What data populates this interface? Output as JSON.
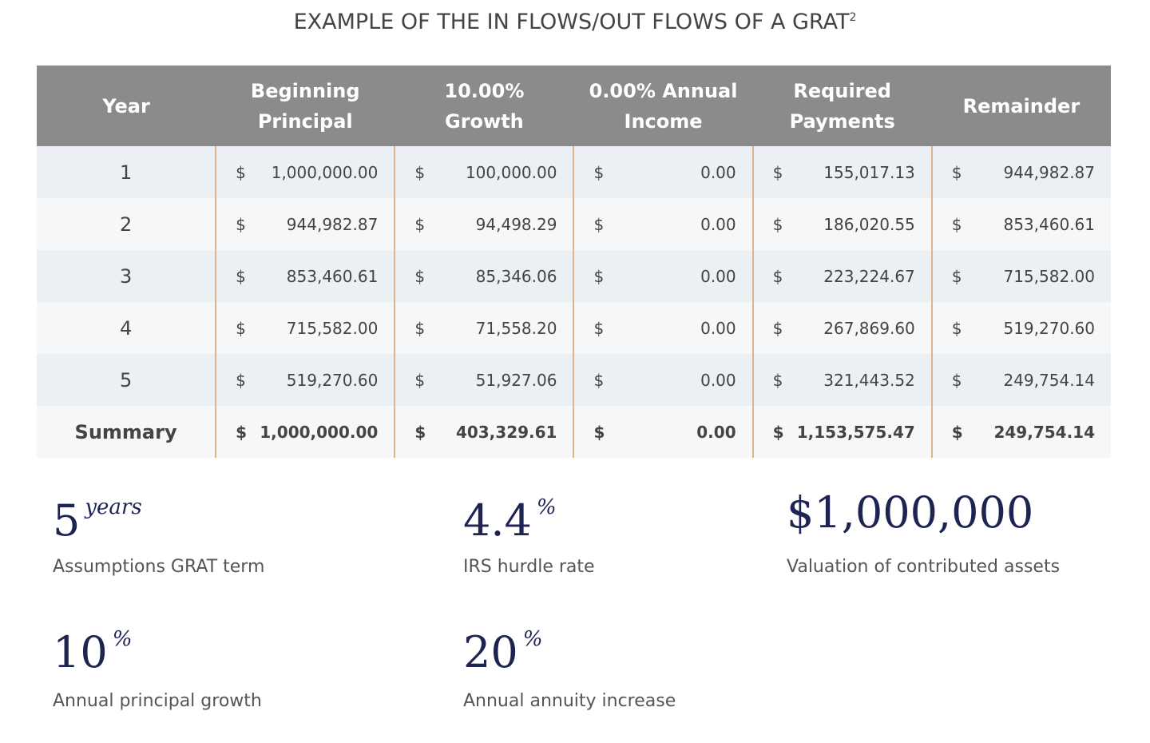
{
  "header": {
    "title": "EXAMPLE OF THE IN FLOWS/OUT FLOWS OF A GRAT",
    "footnote": "2"
  },
  "table": {
    "columns": [
      "Year",
      "Beginning Principal",
      "10.00% Growth",
      "0.00% Annual Income",
      "Required Payments",
      "Remainder"
    ],
    "rows": [
      [
        "1",
        {
          "currency": "$",
          "amount": "1,000,000.00"
        },
        {
          "currency": "$",
          "amount": "100,000.00"
        },
        {
          "currency": "$",
          "amount": "0.00"
        },
        {
          "currency": "$",
          "amount": "155,017.13"
        },
        {
          "currency": "$",
          "amount": "944,982.87"
        }
      ],
      [
        "2",
        {
          "currency": "$",
          "amount": "944,982.87"
        },
        {
          "currency": "$",
          "amount": "94,498.29"
        },
        {
          "currency": "$",
          "amount": "0.00"
        },
        {
          "currency": "$",
          "amount": "186,020.55"
        },
        {
          "currency": "$",
          "amount": "853,460.61"
        }
      ],
      [
        "3",
        {
          "currency": "$",
          "amount": "853,460.61"
        },
        {
          "currency": "$",
          "amount": "85,346.06"
        },
        {
          "currency": "$",
          "amount": "0.00"
        },
        {
          "currency": "$",
          "amount": "223,224.67"
        },
        {
          "currency": "$",
          "amount": "715,582.00"
        }
      ],
      [
        "4",
        {
          "currency": "$",
          "amount": "715,582.00"
        },
        {
          "currency": "$",
          "amount": "71,558.20"
        },
        {
          "currency": "$",
          "amount": "0.00"
        },
        {
          "currency": "$",
          "amount": "267,869.60"
        },
        {
          "currency": "$",
          "amount": "519,270.60"
        }
      ],
      [
        "5",
        {
          "currency": "$",
          "amount": "519,270.60"
        },
        {
          "currency": "$",
          "amount": "51,927.06"
        },
        {
          "currency": "$",
          "amount": "0.00"
        },
        {
          "currency": "$",
          "amount": "321,443.52"
        },
        {
          "currency": "$",
          "amount": "249,754.14"
        }
      ],
      [
        "Summary",
        {
          "currency": "$",
          "amount": "1,000,000.00"
        },
        {
          "currency": "$",
          "amount": "403,329.61"
        },
        {
          "currency": "$",
          "amount": "0.00"
        },
        {
          "currency": "$",
          "amount": "1,153,575.47"
        },
        {
          "currency": "$",
          "amount": "249,754.14"
        }
      ]
    ]
  },
  "stats": [
    {
      "value": "5",
      "unit": "years",
      "label": "Assumptions GRAT term"
    },
    {
      "value": "4.4",
      "unit": "%",
      "label": "IRS hurdle rate"
    },
    {
      "value": "$1,000,000",
      "label": "Valuation of contributed assets"
    },
    {
      "value": "10",
      "unit": "%",
      "label": "Annual principal growth"
    },
    {
      "value": "20",
      "unit": "%",
      "label": "Annual annuity increase"
    }
  ]
}
